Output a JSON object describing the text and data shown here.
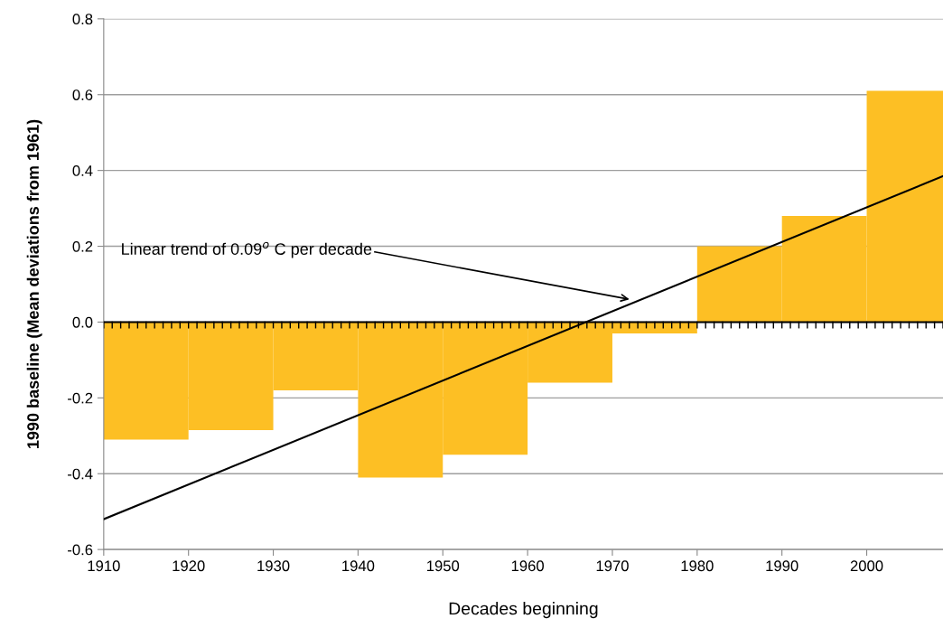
{
  "chart_data": {
    "type": "histogram",
    "xlabel": "Decades beginning",
    "ylabel": "1990 baseline (Mean deviations from 1961)",
    "bins": [
      1910,
      1920,
      1930,
      1940,
      1950,
      1960,
      1970,
      1980,
      1990,
      2000,
      2009
    ],
    "values": [
      -0.31,
      -0.285,
      -0.18,
      -0.41,
      -0.35,
      -0.16,
      -0.03,
      0.2,
      0.28,
      0.61
    ],
    "color": "#fdbf24",
    "series": [
      {
        "type": "line",
        "color": "#000000",
        "x": [
          1910,
          2009
        ],
        "values": [
          -0.52,
          0.385
        ]
      }
    ],
    "annotations": [
      {
        "text": "Linear trend of 0.09$^{o}$ C per decade",
        "x": 1972,
        "y": 0.06
      }
    ],
    "ref_lines": [
      {
        "axis": "y",
        "value": 0,
        "color": "#000000"
      }
    ],
    "xlim": [
      1910,
      2009
    ],
    "xticks": [
      1910,
      1920,
      1930,
      1940,
      1950,
      1960,
      1970,
      1980,
      1990,
      2000
    ],
    "ylim": [
      -0.6,
      0.8
    ],
    "yticks": [
      -0.6,
      -0.4,
      -0.2,
      {
        "value": 0,
        "label": "0.0"
      },
      0.2,
      0.4,
      0.6,
      0.8
    ],
    "grid": "y",
    "legend": false
  }
}
